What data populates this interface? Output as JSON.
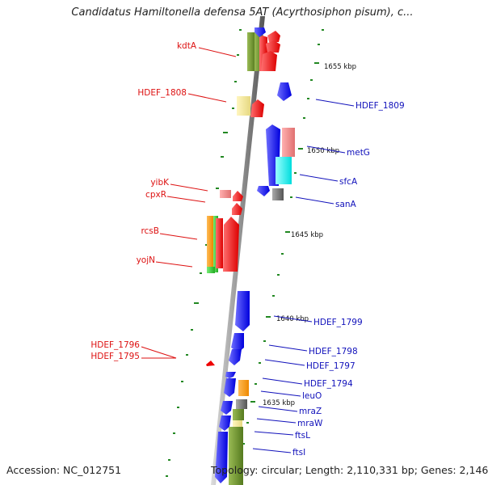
{
  "title": "Candidatus Hamiltonella defensa 5AT (Acyrthosiphon pisum), c...",
  "accession": "Accession: NC_012751",
  "topology": "Topology: circular; Length: 2,110,331 bp; Genes: 2,146",
  "colors": {
    "label_left": "#dd1111",
    "label_right": "#1111bb",
    "backbone": "#888888",
    "tick": "#228822"
  },
  "kbp_marks": [
    "1655 kbp",
    "1650 kbp",
    "1645 kbp",
    "1640 kbp",
    "1635 kbp"
  ],
  "left_labels": [
    "kdtA",
    "HDEF_1808",
    "yibK",
    "cpxR",
    "rcsB",
    "yojN",
    "HDEF_1796",
    "HDEF_1795"
  ],
  "right_labels": [
    "HDEF_1809",
    "metG",
    "sfcA",
    "sanA",
    "HDEF_1799",
    "HDEF_1798",
    "HDEF_1797",
    "HDEF_1794",
    "leuO",
    "mraZ",
    "mraW",
    "ftsL",
    "ftsI"
  ]
}
